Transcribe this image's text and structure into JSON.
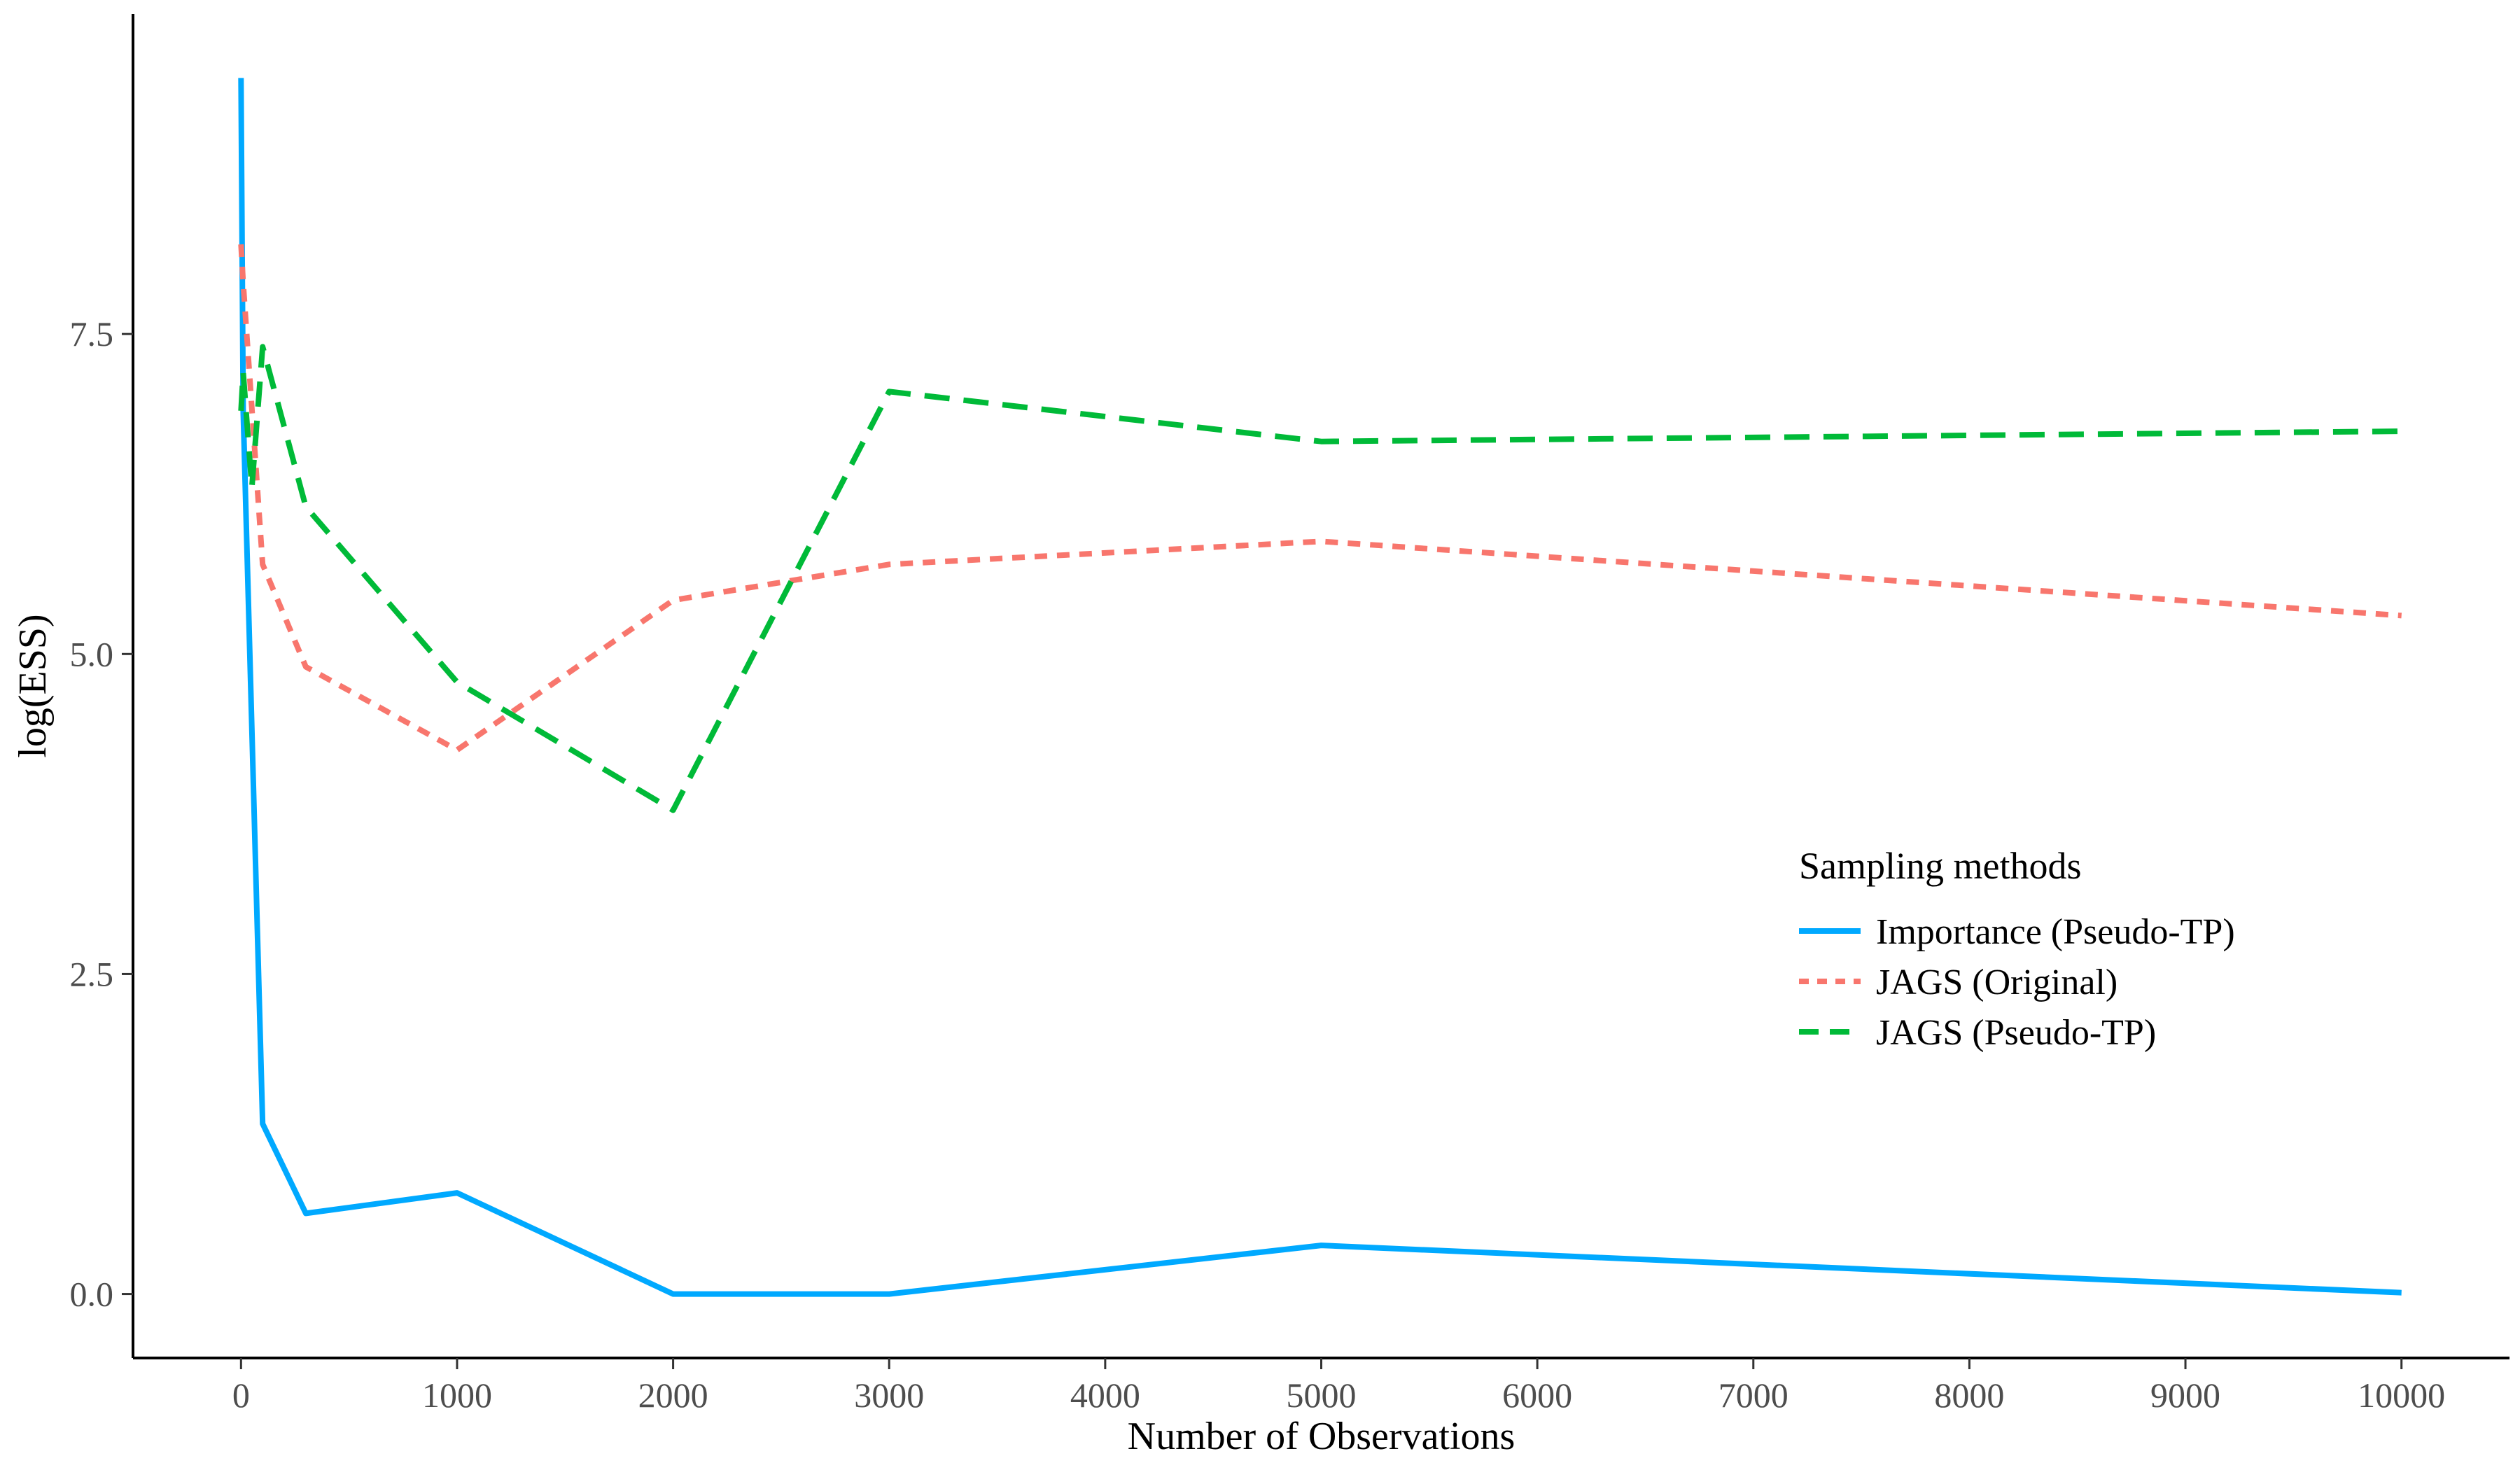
{
  "chart_data": {
    "type": "line",
    "title": "",
    "xlabel": "Number of Observations",
    "ylabel": "log(ESS)",
    "xlim": [
      -500,
      10500
    ],
    "ylim": [
      -0.5,
      10.0
    ],
    "x_ticks": [
      0,
      1000,
      2000,
      3000,
      4000,
      5000,
      6000,
      7000,
      8000,
      9000,
      10000
    ],
    "y_ticks": [
      0.0,
      2.5,
      5.0,
      7.5
    ],
    "y_tick_labels": [
      "0.0",
      "2.5",
      "5.0",
      "7.5"
    ],
    "grid": false,
    "legend": {
      "title": "Sampling methods",
      "placement": "right"
    },
    "series": [
      {
        "name": "Importance (Pseudo-TP)",
        "color": "#00a9ff",
        "dash": "solid",
        "x": [
          0,
          10,
          100,
          300,
          1000,
          2000,
          3000,
          5000,
          10000
        ],
        "y": [
          9.5,
          6.9,
          1.33,
          0.63,
          0.79,
          0.0,
          0.0,
          0.38,
          0.01
        ]
      },
      {
        "name": "JAGS (Original)",
        "color": "#f8766d",
        "dash": "dotted",
        "x": [
          0,
          10,
          100,
          300,
          1000,
          2000,
          3000,
          5000,
          10000
        ],
        "y": [
          8.2,
          7.9,
          5.7,
          4.9,
          4.25,
          5.42,
          5.7,
          5.88,
          5.3
        ]
      },
      {
        "name": "JAGS (Pseudo-TP)",
        "color": "#00ba38",
        "dash": "dashed",
        "x": [
          0,
          10,
          50,
          100,
          300,
          1000,
          2000,
          3000,
          5000,
          10000
        ],
        "y": [
          6.9,
          7.2,
          6.3,
          7.4,
          6.15,
          4.78,
          3.78,
          7.05,
          6.66,
          6.74
        ]
      }
    ]
  }
}
